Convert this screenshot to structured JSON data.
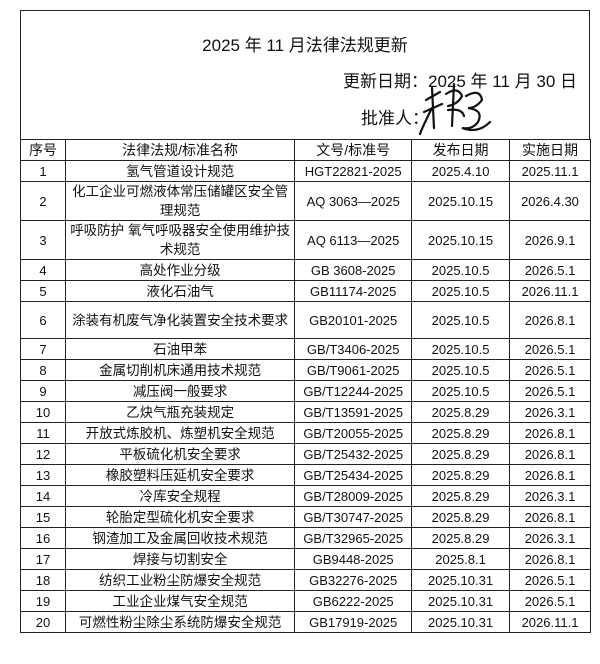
{
  "header": {
    "title": "2025 年 11 月法律法规更新",
    "update_date": "更新日期：2025 年 11 月 30 日",
    "approver_label": "批准人：",
    "signature_text": "张总"
  },
  "table": {
    "columns": [
      "序号",
      "法律法规/标准名称",
      "文号/标准号",
      "发布日期",
      "实施日期"
    ],
    "rows": [
      [
        "1",
        "氢气管道设计规范",
        "HGT22821-2025",
        "2025.4.10",
        "2025.11.1"
      ],
      [
        "2",
        "化工企业可燃液体常压储罐区安全管理规范",
        "AQ 3063—2025",
        "2025.10.15",
        "2026.4.30"
      ],
      [
        "3",
        "呼吸防护  氧气呼吸器安全使用维护技术规范",
        "AQ 6113—2025",
        "2025.10.15",
        "2026.9.1"
      ],
      [
        "4",
        "高处作业分级",
        "GB 3608-2025",
        "2025.10.5",
        "2026.5.1"
      ],
      [
        "5",
        "液化石油气",
        "GB11174-2025",
        "2025.10.5",
        "2026.11.1"
      ],
      [
        "6",
        "涂装有机废气净化装置安全技术要求",
        "GB20101-2025",
        "2025.10.5",
        "2026.8.1"
      ],
      [
        "7",
        "石油甲苯",
        "GB/T3406-2025",
        "2025.10.5",
        "2026.5.1"
      ],
      [
        "8",
        "金属切削机床通用技术规范",
        "GB/T9061-2025",
        "2025.10.5",
        "2026.5.1"
      ],
      [
        "9",
        "减压阀一般要求",
        "GB/T12244-2025",
        "2025.10.5",
        "2026.5.1"
      ],
      [
        "10",
        "乙炔气瓶充装规定",
        "GB/T13591-2025",
        "2025.8.29",
        "2026.3.1"
      ],
      [
        "11",
        "开放式炼胶机、炼塑机安全规范",
        "GB/T20055-2025",
        "2025.8.29",
        "2026.8.1"
      ],
      [
        "12",
        "平板硫化机安全要求",
        "GB/T25432-2025",
        "2025.8.29",
        "2026.8.1"
      ],
      [
        "13",
        "橡胶塑料压延机安全要求",
        "GB/T25434-2025",
        "2025.8.29",
        "2026.8.1"
      ],
      [
        "14",
        "冷库安全规程",
        "GB/T28009-2025",
        "2025.8.29",
        "2026.3.1"
      ],
      [
        "15",
        "轮胎定型硫化机安全要求",
        "GB/T30747-2025",
        "2025.8.29",
        "2026.8.1"
      ],
      [
        "16",
        "钢渣加工及金属回收技术规范",
        "GB/T32965-2025",
        "2025.8.29",
        "2026.3.1"
      ],
      [
        "17",
        "焊接与切割安全",
        "GB9448-2025",
        "2025.8.1",
        "2026.8.1"
      ],
      [
        "18",
        "纺织工业粉尘防爆安全规范",
        "GB32276-2025",
        "2025.10.31",
        "2026.5.1"
      ],
      [
        "19",
        "工业企业煤气安全规范",
        "GB6222-2025",
        "2025.10.31",
        "2026.5.1"
      ],
      [
        "20",
        "可燃性粉尘除尘系统防爆安全规范",
        "GB17919-2025",
        "2025.10.31",
        "2026.11.1"
      ]
    ]
  }
}
